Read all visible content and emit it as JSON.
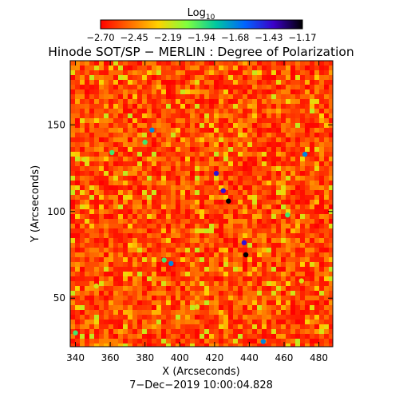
{
  "chart_data": {
    "type": "heatmap",
    "title": "Hinode SOT/SP − MERLIN : Degree of Polarization",
    "xlabel": "X (Arcseconds)",
    "ylabel": "Y (Arcseconds)",
    "date_label": "7−Dec−2019 10:00:04.828",
    "colorbar": {
      "title_base": "Log",
      "title_sub": "10",
      "ticks": [
        "−2.70",
        "−2.45",
        "−2.19",
        "−1.94",
        "−1.68",
        "−1.43",
        "−1.17"
      ],
      "range": [
        -2.7,
        -1.17
      ],
      "colors": [
        "#ff0000",
        "#ff6a00",
        "#ffd200",
        "#7fff3f",
        "#00c8a0",
        "#0064ff",
        "#3c00c8",
        "#000000"
      ]
    },
    "xlim": [
      337,
      488
    ],
    "ylim": [
      22,
      187
    ],
    "xticks": [
      {
        "value": 340,
        "label": "340"
      },
      {
        "value": 360,
        "label": "360"
      },
      {
        "value": 380,
        "label": "380"
      },
      {
        "value": 400,
        "label": "400"
      },
      {
        "value": 420,
        "label": "420"
      },
      {
        "value": 440,
        "label": "440"
      },
      {
        "value": 460,
        "label": "460"
      },
      {
        "value": 480,
        "label": "480"
      }
    ],
    "yticks": [
      {
        "value": 50,
        "label": "50"
      },
      {
        "value": 100,
        "label": "100"
      },
      {
        "value": 150,
        "label": "150"
      }
    ],
    "background_value": -2.55,
    "features": [
      {
        "x": 384,
        "y": 147,
        "value": -1.68
      },
      {
        "x": 380,
        "y": 140,
        "value": -1.94
      },
      {
        "x": 361,
        "y": 134,
        "value": -1.94
      },
      {
        "x": 421,
        "y": 122,
        "value": -1.43
      },
      {
        "x": 425,
        "y": 112,
        "value": -1.43
      },
      {
        "x": 428,
        "y": 106,
        "value": -1.17
      },
      {
        "x": 437,
        "y": 82,
        "value": -1.43
      },
      {
        "x": 438,
        "y": 75,
        "value": -1.17
      },
      {
        "x": 391,
        "y": 72,
        "value": -1.94
      },
      {
        "x": 395,
        "y": 70,
        "value": -1.68
      },
      {
        "x": 472,
        "y": 133,
        "value": -1.68
      },
      {
        "x": 462,
        "y": 98,
        "value": -1.94
      },
      {
        "x": 448,
        "y": 25,
        "value": -1.68
      },
      {
        "x": 345,
        "y": 130,
        "value": -2.19
      },
      {
        "x": 352,
        "y": 57,
        "value": -2.19
      },
      {
        "x": 470,
        "y": 60,
        "value": -2.19
      },
      {
        "x": 340,
        "y": 30,
        "value": -1.94
      },
      {
        "x": 410,
        "y": 45,
        "value": -2.19
      }
    ]
  }
}
